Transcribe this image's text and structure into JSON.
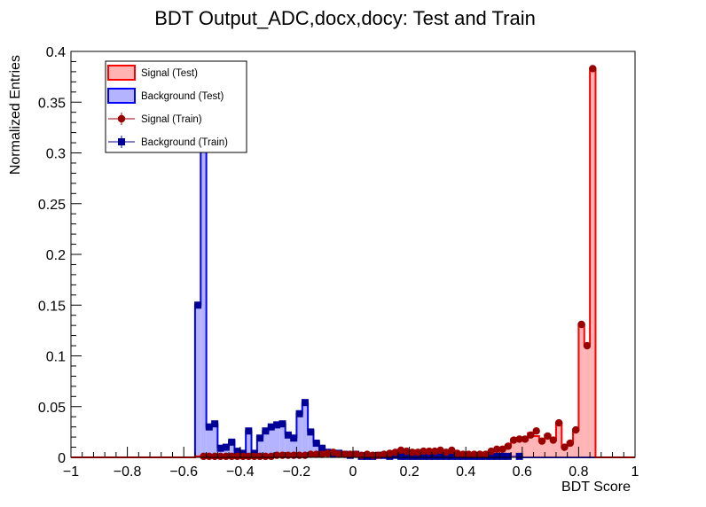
{
  "chart_data": {
    "type": "histogram",
    "title": "BDT Output_ADC,docx,docy: Test and Train",
    "xlabel": "BDT Score",
    "ylabel": "Normalized Entries",
    "xlim": [
      -1,
      1
    ],
    "ylim": [
      0,
      0.4
    ],
    "x_ticks": [
      "−1",
      "−0.8",
      "−0.6",
      "−0.4",
      "−0.2",
      "0",
      "0.2",
      "0.4",
      "0.6",
      "0.8",
      "1"
    ],
    "y_ticks": [
      "0",
      "0.05",
      "0.1",
      "0.15",
      "0.2",
      "0.25",
      "0.3",
      "0.35",
      "0.4"
    ],
    "bin_width": 0.02,
    "legend_position": "top-left",
    "legend": [
      {
        "label": "Signal (Test)",
        "style": "fill",
        "color": "#ff0000",
        "fill": "#ffb3b3"
      },
      {
        "label": "Background (Test)",
        "style": "fill",
        "color": "#0000ff",
        "fill": "#b3b3ff"
      },
      {
        "label": "Signal (Train)",
        "style": "marker-circle",
        "color": "#990000"
      },
      {
        "label": "Background (Train)",
        "style": "marker-square",
        "color": "#000099"
      }
    ],
    "series": [
      {
        "name": "Signal (Test)",
        "bins": [
          [
            -0.56,
            0.001
          ],
          [
            -0.54,
            0.001
          ],
          [
            -0.52,
            0.002
          ],
          [
            -0.5,
            0.001
          ],
          [
            -0.48,
            0.001
          ],
          [
            -0.46,
            0.001
          ],
          [
            -0.44,
            0.001
          ],
          [
            -0.42,
            0.001
          ],
          [
            -0.4,
            0.001
          ],
          [
            -0.38,
            0.001
          ],
          [
            -0.36,
            0.001
          ],
          [
            -0.34,
            0.001
          ],
          [
            -0.32,
            0.001
          ],
          [
            -0.3,
            0.001
          ],
          [
            -0.28,
            0.001
          ],
          [
            -0.26,
            0.002
          ],
          [
            -0.24,
            0.002
          ],
          [
            -0.22,
            0.002
          ],
          [
            -0.2,
            0.002
          ],
          [
            -0.18,
            0.002
          ],
          [
            -0.16,
            0.003
          ],
          [
            -0.14,
            0.003
          ],
          [
            -0.12,
            0.004
          ],
          [
            -0.1,
            0.004
          ],
          [
            -0.08,
            0.005
          ],
          [
            -0.06,
            0.003
          ],
          [
            -0.04,
            0.003
          ],
          [
            -0.02,
            0.003
          ],
          [
            0.0,
            0.003
          ],
          [
            0.02,
            0.002
          ],
          [
            0.04,
            0.003
          ],
          [
            0.06,
            0.003
          ],
          [
            0.08,
            0.003
          ],
          [
            0.1,
            0.004
          ],
          [
            0.12,
            0.004
          ],
          [
            0.14,
            0.005
          ],
          [
            0.16,
            0.006
          ],
          [
            0.18,
            0.006
          ],
          [
            0.2,
            0.005
          ],
          [
            0.22,
            0.005
          ],
          [
            0.24,
            0.006
          ],
          [
            0.26,
            0.006
          ],
          [
            0.28,
            0.006
          ],
          [
            0.3,
            0.007
          ],
          [
            0.32,
            0.005
          ],
          [
            0.34,
            0.007
          ],
          [
            0.36,
            0.004
          ],
          [
            0.38,
            0.003
          ],
          [
            0.4,
            0.003
          ],
          [
            0.42,
            0.003
          ],
          [
            0.44,
            0.003
          ],
          [
            0.46,
            0.003
          ],
          [
            0.48,
            0.006
          ],
          [
            0.5,
            0.008
          ],
          [
            0.52,
            0.008
          ],
          [
            0.54,
            0.012
          ],
          [
            0.56,
            0.018
          ],
          [
            0.58,
            0.019
          ],
          [
            0.6,
            0.017
          ],
          [
            0.62,
            0.024
          ],
          [
            0.64,
            0.021
          ],
          [
            0.66,
            0.016
          ],
          [
            0.68,
            0.022
          ],
          [
            0.7,
            0.019
          ],
          [
            0.72,
            0.034
          ],
          [
            0.74,
            0.011
          ],
          [
            0.76,
            0.015
          ],
          [
            0.78,
            0.027
          ],
          [
            0.8,
            0.131
          ],
          [
            0.82,
            0.112
          ],
          [
            0.84,
            0.383
          ]
        ]
      },
      {
        "name": "Background (Test)",
        "bins": [
          [
            -0.56,
            0.15
          ],
          [
            -0.54,
            0.38
          ],
          [
            -0.52,
            0.03
          ],
          [
            -0.5,
            0.033
          ],
          [
            -0.48,
            0.01
          ],
          [
            -0.46,
            0.011
          ],
          [
            -0.44,
            0.016
          ],
          [
            -0.42,
            0.007
          ],
          [
            -0.4,
            0.004
          ],
          [
            -0.38,
            0.026
          ],
          [
            -0.36,
            0.004
          ],
          [
            -0.34,
            0.02
          ],
          [
            -0.32,
            0.026
          ],
          [
            -0.3,
            0.03
          ],
          [
            -0.28,
            0.032
          ],
          [
            -0.26,
            0.033
          ],
          [
            -0.24,
            0.023
          ],
          [
            -0.22,
            0.02
          ],
          [
            -0.2,
            0.043
          ],
          [
            -0.18,
            0.053
          ],
          [
            -0.16,
            0.026
          ],
          [
            -0.14,
            0.015
          ],
          [
            -0.12,
            0.01
          ],
          [
            -0.1,
            0.005
          ],
          [
            -0.08,
            0.003
          ],
          [
            -0.06,
            0.004
          ],
          [
            -0.04,
            0.003
          ],
          [
            -0.02,
            0.002
          ],
          [
            0.0,
            0.003
          ],
          [
            0.02,
            0.001
          ],
          [
            0.04,
            0.001
          ],
          [
            0.06,
            0.001
          ],
          [
            0.08,
            0.002
          ],
          [
            0.1,
            0.002
          ],
          [
            0.12,
            0.001
          ],
          [
            0.14,
            0.002
          ],
          [
            0.16,
            0.001
          ],
          [
            0.18,
            0.001
          ],
          [
            0.2,
            0.001
          ],
          [
            0.22,
            0.001
          ],
          [
            0.24,
            0.001
          ],
          [
            0.26,
            0.001
          ],
          [
            0.28,
            0.001
          ],
          [
            0.3,
            0.001
          ],
          [
            0.32,
            0.001
          ],
          [
            0.34,
            0.001
          ],
          [
            0.36,
            0.001
          ],
          [
            0.38,
            0.001
          ],
          [
            0.4,
            0.001
          ],
          [
            0.42,
            0.001
          ],
          [
            0.44,
            0.001
          ],
          [
            0.46,
            0.001
          ],
          [
            0.48,
            0.001
          ],
          [
            0.5,
            0.001
          ],
          [
            0.52,
            0.001
          ],
          [
            0.54,
            0.001
          ],
          [
            0.56,
            0.001
          ],
          [
            0.58,
            0.001
          ]
        ]
      },
      {
        "name": "Signal (Train)",
        "points": [
          [
            -0.54,
            0.001
          ],
          [
            -0.52,
            0.001
          ],
          [
            -0.5,
            0.001
          ],
          [
            -0.48,
            0.001
          ],
          [
            -0.46,
            0.001
          ],
          [
            -0.44,
            0.001
          ],
          [
            -0.42,
            0.001
          ],
          [
            -0.4,
            0.001
          ],
          [
            -0.38,
            0.001
          ],
          [
            -0.36,
            0.001
          ],
          [
            -0.34,
            0.001
          ],
          [
            -0.32,
            0.001
          ],
          [
            -0.3,
            0.001
          ],
          [
            -0.28,
            0.002
          ],
          [
            -0.26,
            0.002
          ],
          [
            -0.24,
            0.002
          ],
          [
            -0.22,
            0.002
          ],
          [
            -0.2,
            0.002
          ],
          [
            -0.18,
            0.002
          ],
          [
            -0.16,
            0.003
          ],
          [
            -0.14,
            0.003
          ],
          [
            -0.12,
            0.003
          ],
          [
            -0.1,
            0.004
          ],
          [
            -0.08,
            0.005
          ],
          [
            -0.06,
            0.003
          ],
          [
            -0.04,
            0.003
          ],
          [
            -0.02,
            0.003
          ],
          [
            0.0,
            0.003
          ],
          [
            0.02,
            0.002
          ],
          [
            0.04,
            0.003
          ],
          [
            0.06,
            0.002
          ],
          [
            0.08,
            0.002
          ],
          [
            0.1,
            0.003
          ],
          [
            0.12,
            0.004
          ],
          [
            0.14,
            0.005
          ],
          [
            0.16,
            0.007
          ],
          [
            0.18,
            0.006
          ],
          [
            0.2,
            0.005
          ],
          [
            0.22,
            0.005
          ],
          [
            0.24,
            0.006
          ],
          [
            0.26,
            0.006
          ],
          [
            0.28,
            0.006
          ],
          [
            0.3,
            0.007
          ],
          [
            0.32,
            0.005
          ],
          [
            0.34,
            0.007
          ],
          [
            0.36,
            0.004
          ],
          [
            0.38,
            0.003
          ],
          [
            0.4,
            0.003
          ],
          [
            0.42,
            0.003
          ],
          [
            0.44,
            0.003
          ],
          [
            0.46,
            0.003
          ],
          [
            0.48,
            0.006
          ],
          [
            0.5,
            0.008
          ],
          [
            0.52,
            0.008
          ],
          [
            0.54,
            0.011
          ],
          [
            0.56,
            0.017
          ],
          [
            0.58,
            0.018
          ],
          [
            0.6,
            0.018
          ],
          [
            0.62,
            0.022
          ],
          [
            0.64,
            0.026
          ],
          [
            0.66,
            0.016
          ],
          [
            0.68,
            0.021
          ],
          [
            0.7,
            0.017
          ],
          [
            0.72,
            0.034
          ],
          [
            0.74,
            0.01
          ],
          [
            0.76,
            0.014
          ],
          [
            0.78,
            0.027
          ],
          [
            0.8,
            0.131
          ],
          [
            0.82,
            0.11
          ],
          [
            0.84,
            0.383
          ]
        ]
      },
      {
        "name": "Background (Train)",
        "points": [
          [
            -0.56,
            0.15
          ],
          [
            -0.54,
            0.38
          ],
          [
            -0.52,
            0.03
          ],
          [
            -0.5,
            0.033
          ],
          [
            -0.48,
            0.009
          ],
          [
            -0.46,
            0.01
          ],
          [
            -0.44,
            0.015
          ],
          [
            -0.42,
            0.006
          ],
          [
            -0.4,
            0.004
          ],
          [
            -0.38,
            0.026
          ],
          [
            -0.36,
            0.004
          ],
          [
            -0.34,
            0.019
          ],
          [
            -0.32,
            0.026
          ],
          [
            -0.3,
            0.03
          ],
          [
            -0.28,
            0.032
          ],
          [
            -0.26,
            0.033
          ],
          [
            -0.24,
            0.022
          ],
          [
            -0.22,
            0.019
          ],
          [
            -0.2,
            0.043
          ],
          [
            -0.18,
            0.054
          ],
          [
            -0.16,
            0.025
          ],
          [
            -0.14,
            0.014
          ],
          [
            -0.12,
            0.009
          ],
          [
            -0.1,
            0.005
          ],
          [
            -0.08,
            0.003
          ],
          [
            -0.06,
            0.004
          ],
          [
            -0.04,
            0.003
          ],
          [
            -0.02,
            0.002
          ],
          [
            0.0,
            0.003
          ],
          [
            0.02,
            0.001
          ],
          [
            0.04,
            0.001
          ],
          [
            0.06,
            0.001
          ],
          [
            0.08,
            0.002
          ],
          [
            0.1,
            0.002
          ],
          [
            0.12,
            0.001
          ],
          [
            0.14,
            0.002
          ],
          [
            0.16,
            0.001
          ],
          [
            0.18,
            0.001
          ],
          [
            0.2,
            0.001
          ],
          [
            0.22,
            0.001
          ],
          [
            0.24,
            0.001
          ],
          [
            0.26,
            0.001
          ],
          [
            0.28,
            0.001
          ],
          [
            0.3,
            0.001
          ],
          [
            0.32,
            0.001
          ],
          [
            0.34,
            0.001
          ],
          [
            0.36,
            0.001
          ],
          [
            0.38,
            0.001
          ],
          [
            0.4,
            0.001
          ],
          [
            0.42,
            0.001
          ],
          [
            0.44,
            0.001
          ],
          [
            0.46,
            0.001
          ],
          [
            0.48,
            0.001
          ],
          [
            0.5,
            0.001
          ],
          [
            0.52,
            0.001
          ],
          [
            0.54,
            0.001
          ],
          [
            0.58,
            0.001
          ]
        ]
      }
    ]
  }
}
